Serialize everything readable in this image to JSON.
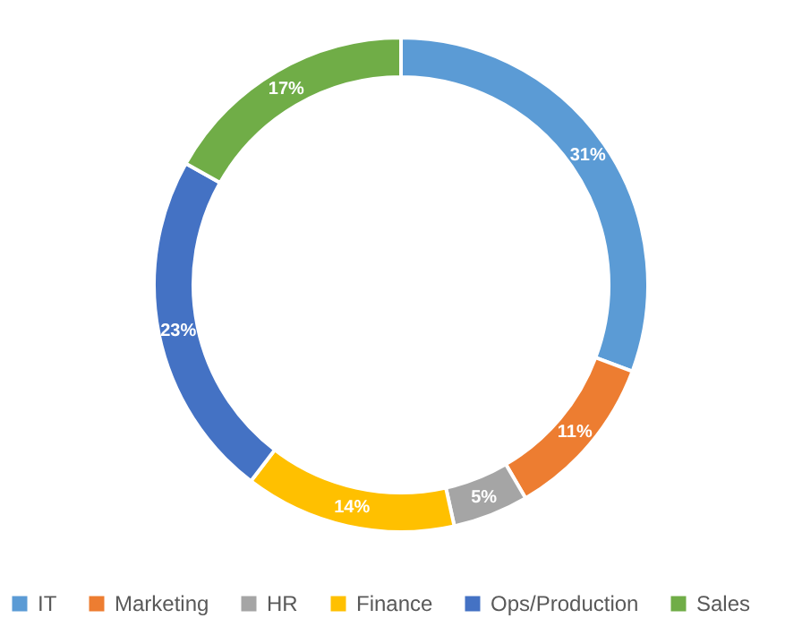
{
  "chart_data": {
    "type": "donut",
    "categories": [
      "IT",
      "Marketing",
      "HR",
      "Finance",
      "Ops/Production",
      "Sales"
    ],
    "values": [
      31,
      11,
      5,
      14,
      23,
      17
    ],
    "colors": [
      "#5b9bd5",
      "#ed7d31",
      "#a5a5a5",
      "#ffc000",
      "#4472c4",
      "#70ad47"
    ],
    "value_labels": [
      "31%",
      "11%",
      "5%",
      "14%",
      "23%",
      "17%"
    ],
    "legend": "bottom"
  }
}
